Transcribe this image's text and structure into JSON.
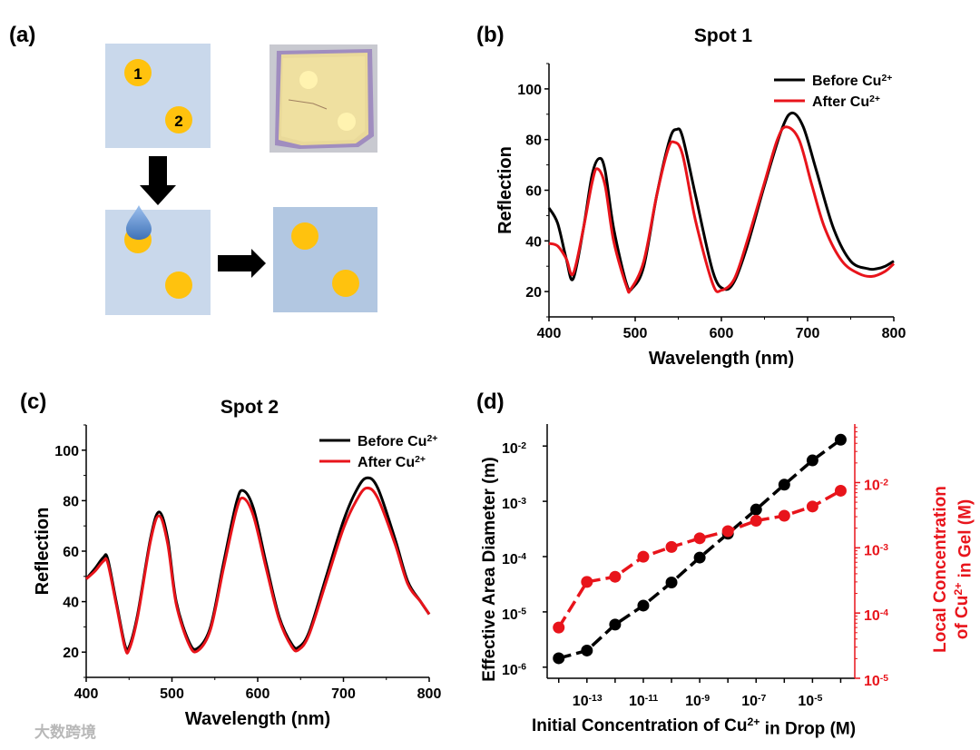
{
  "panel_labels": {
    "a": "(a)",
    "b": "(b)",
    "c": "(c)",
    "d": "(d)"
  },
  "schematic": {
    "spot_labels": [
      "1",
      "2"
    ],
    "colors": {
      "substrate": "#c9d8eb",
      "substrate_after": "#b2c7e1",
      "spot": "#ffc20e",
      "drop": "#6d9fdc",
      "arrow": "#000000"
    }
  },
  "watermark": "大数跨境",
  "chart_data": [
    {
      "id": "b",
      "type": "line",
      "title": "Spot 1",
      "xlabel": "Wavelength (nm)",
      "ylabel": "Reflection",
      "xlim": [
        400,
        800
      ],
      "ylim": [
        10,
        110
      ],
      "xticks": [
        400,
        500,
        600,
        700,
        800
      ],
      "yticks": [
        20,
        40,
        60,
        80,
        100
      ],
      "legend_position": "top-right",
      "series": [
        {
          "name": "Before Cu",
          "sup": "2+",
          "color": "#000000",
          "x": [
            400,
            410,
            420,
            428,
            440,
            450,
            458,
            465,
            475,
            490,
            497,
            510,
            525,
            540,
            548,
            555,
            570,
            590,
            603,
            615,
            630,
            650,
            670,
            682,
            695,
            710,
            730,
            750,
            770,
            780,
            790,
            800
          ],
          "y": [
            53,
            47,
            33,
            25,
            45,
            66,
            72.5,
            68,
            45,
            23,
            21.5,
            30,
            58,
            80,
            84,
            81,
            58,
            28,
            21,
            24,
            38,
            62,
            84,
            90.5,
            85,
            68,
            45,
            32,
            29,
            29,
            30,
            32
          ]
        },
        {
          "name": "After Cu",
          "sup": "2+",
          "color": "#e8141b",
          "x": [
            400,
            410,
            420,
            428,
            440,
            450,
            456,
            465,
            475,
            490,
            495,
            510,
            525,
            538,
            545,
            555,
            570,
            590,
            600,
            615,
            630,
            650,
            665,
            675,
            690,
            705,
            720,
            740,
            760,
            775,
            790,
            800
          ],
          "y": [
            39,
            38,
            33,
            27,
            45,
            63,
            68.5,
            62,
            40,
            22,
            21,
            32,
            58,
            76,
            79,
            74,
            48,
            23,
            20.5,
            25,
            40,
            63,
            80,
            85,
            80,
            62,
            45,
            32,
            27,
            26,
            28,
            31
          ]
        }
      ]
    },
    {
      "id": "c",
      "type": "line",
      "title": "Spot 2",
      "xlabel": "Wavelength (nm)",
      "ylabel": "Reflection",
      "xlim": [
        400,
        800
      ],
      "ylim": [
        10,
        110
      ],
      "xticks": [
        400,
        500,
        600,
        700,
        800
      ],
      "yticks": [
        20,
        40,
        60,
        80,
        100
      ],
      "legend_position": "top-right",
      "series": [
        {
          "name": "Before Cu",
          "sup": "2+",
          "color": "#000000",
          "x": [
            400,
            410,
            420,
            425,
            435,
            445,
            450,
            460,
            475,
            485,
            495,
            505,
            520,
            530,
            545,
            560,
            575,
            583,
            595,
            610,
            625,
            640,
            648,
            660,
            680,
            700,
            715,
            727,
            740,
            760,
            775,
            790,
            800
          ],
          "y": [
            49,
            53,
            57.5,
            57,
            40,
            23,
            22,
            35,
            65,
            75.5,
            65,
            40,
            24,
            21.5,
            30,
            55,
            79,
            84,
            77,
            55,
            34,
            23,
            22,
            28,
            50,
            72,
            84,
            89,
            85,
            65,
            48,
            40,
            35
          ]
        },
        {
          "name": "After Cu",
          "sup": "2+",
          "color": "#e8141b",
          "x": [
            400,
            410,
            420,
            425,
            435,
            445,
            450,
            460,
            475,
            485,
            495,
            505,
            520,
            530,
            545,
            560,
            575,
            583,
            595,
            610,
            625,
            640,
            648,
            660,
            680,
            700,
            715,
            727,
            740,
            760,
            775,
            790,
            800
          ],
          "y": [
            49,
            52,
            56,
            55.5,
            39,
            22,
            21,
            34,
            64,
            74,
            63,
            39,
            23,
            20.5,
            29,
            53,
            76,
            81,
            74,
            53,
            33,
            22,
            21,
            27,
            48,
            69,
            80,
            85,
            81,
            63,
            47,
            40,
            35
          ]
        }
      ]
    },
    {
      "id": "d",
      "type": "scatter",
      "title": "",
      "xlabel": "Initial Concentration of Cu²⁺ in Drop (M)",
      "xlabel_parts": [
        "Initial Concentration of Cu",
        "2+",
        " in Drop (M)"
      ],
      "ylabel": "Effective Area Diameter (m)",
      "y2label_parts": [
        "Local Concentration",
        "of Cu",
        "2+",
        " in Gel (M)"
      ],
      "x_scale": "log",
      "xlim": [
        1e-14,
        0.0001
      ],
      "ylim": [
        6.3e-07,
        0.025
      ],
      "y2lim": [
        1e-05,
        0.079
      ],
      "xtick_exponents": [
        -13,
        -11,
        -9,
        -7,
        -5
      ],
      "ytick_exponents": [
        -6,
        -5,
        -4,
        -3,
        -2
      ],
      "y2tick_exponents": [
        -5,
        -4,
        -3,
        -2
      ],
      "x": [
        1e-14,
        1e-13,
        1e-12,
        1e-11,
        1e-10,
        1e-09,
        1e-08,
        1e-07,
        1e-06,
        1e-05,
        0.0001
      ],
      "series": [
        {
          "name": "Effective Area Diameter",
          "axis": "left",
          "color": "#000000",
          "y": [
            1.45e-06,
            2e-06,
            5.9e-06,
            1.3e-05,
            3.4e-05,
            9.6e-05,
            0.00026,
            0.00071,
            0.002,
            0.0055,
            0.013
          ]
        },
        {
          "name": "Local Concentration of Cu2+ in Gel",
          "axis": "right",
          "color": "#e8141b",
          "y": [
            6e-05,
            0.0003,
            0.00036,
            0.00073,
            0.00103,
            0.0014,
            0.0018,
            0.0026,
            0.0031,
            0.0043,
            0.0075
          ]
        }
      ]
    }
  ]
}
